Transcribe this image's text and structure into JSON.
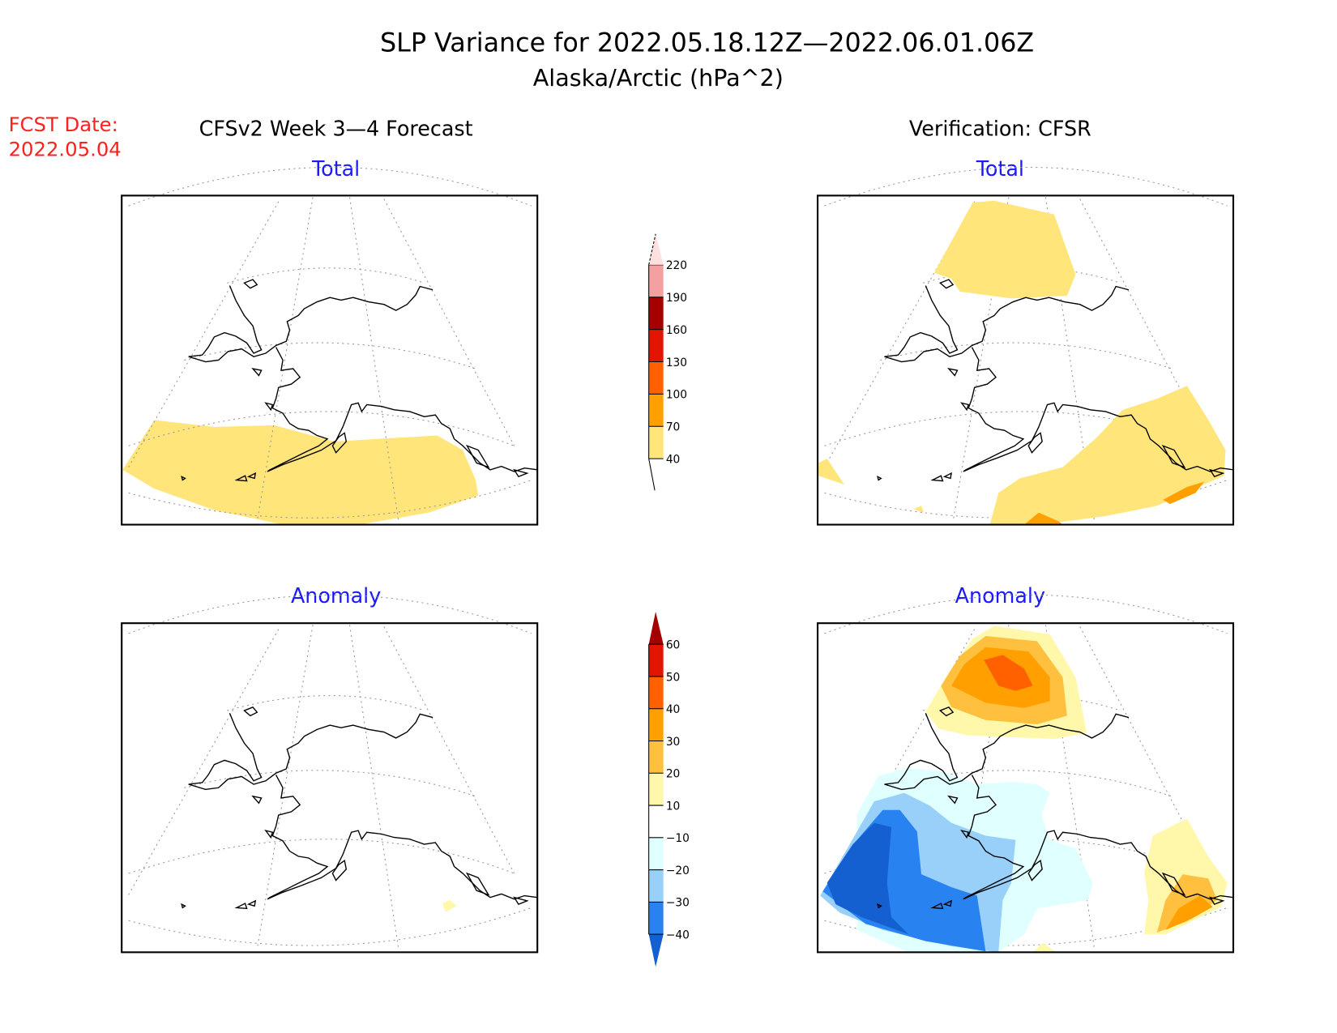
{
  "header": {
    "title": "SLP Variance for 2022.05.18.12Z—2022.06.01.06Z",
    "subtitle": "Alaska/Arctic (hPa^2)",
    "fcst_label": "FCST Date:",
    "fcst_date": "2022.05.04",
    "left_column_title": "CFSv2 Week 3—4 Forecast",
    "right_column_title": "Verification: CFSR"
  },
  "panels": {
    "top_left_title": "Total",
    "top_right_title": "Total",
    "bottom_left_title": "Anomaly",
    "bottom_right_title": "Anomaly"
  },
  "chart_data": [
    {
      "type": "heatmap",
      "name": "total-colorbar",
      "levels": [
        "40",
        "70",
        "100",
        "130",
        "160",
        "190",
        "220"
      ],
      "colors": [
        "#ffe57a",
        "#ffa000",
        "#ff6000",
        "#e11500",
        "#a50000",
        "#f4a0a0",
        "#ffe0e0"
      ],
      "note": "colors below 40 are white"
    },
    {
      "type": "heatmap",
      "name": "anomaly-colorbar",
      "levels": [
        "−40",
        "−30",
        "−20",
        "−10",
        "10",
        "20",
        "30",
        "40",
        "50",
        "60"
      ],
      "colors": [
        "#1560d0",
        "#2882f0",
        "#98d0fa",
        "#e0ffff",
        "#ffffff",
        "#fff7aa",
        "#ffc040",
        "#ffa000",
        "#ff6000",
        "#e11500",
        "#a50000"
      ]
    }
  ]
}
